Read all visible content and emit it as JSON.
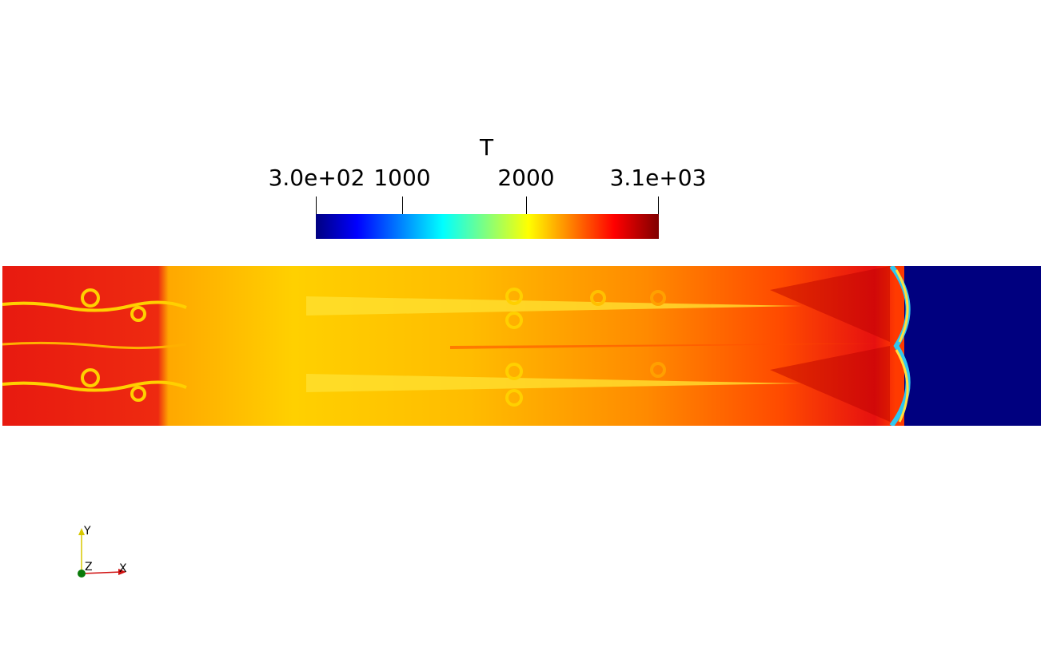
{
  "colorbar": {
    "title": "T",
    "tick_labels": [
      "3.0e+02",
      "1000",
      "2000",
      "3.1e+03"
    ],
    "range": [
      300,
      3100
    ],
    "colormap": "jet",
    "colors": [
      "#000080",
      "#0000ff",
      "#00ffff",
      "#ffff00",
      "#ff0000",
      "#800000"
    ]
  },
  "field": {
    "variable": "T",
    "unburnt_color": "#00007f",
    "hot_color": "#e80e0e",
    "mid_color": "#ffd000"
  },
  "orientation_axes": {
    "x_label": "X",
    "y_label": "Y",
    "z_label": "Z",
    "x_color": "#d01010",
    "y_color": "#d8c800",
    "z_color": "#0a7a0a"
  }
}
